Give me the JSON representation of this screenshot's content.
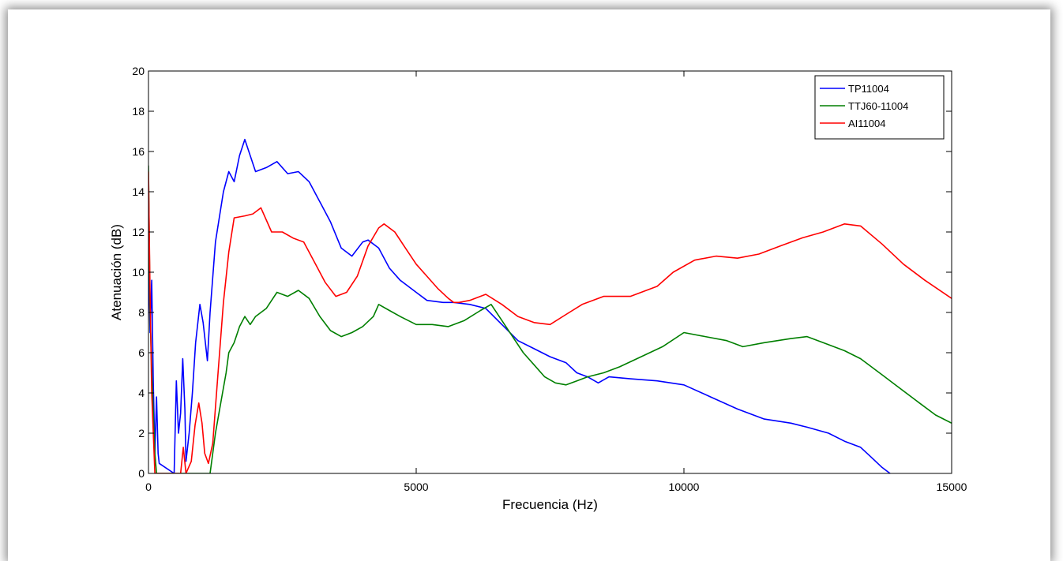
{
  "chart_data": {
    "type": "line",
    "title": "",
    "xlabel": "Frecuencia (Hz)",
    "ylabel": "Atenuación (dB)",
    "xlim": [
      0,
      15000
    ],
    "ylim": [
      0,
      20
    ],
    "xticks": [
      0,
      5000,
      10000,
      15000
    ],
    "yticks": [
      0,
      2,
      4,
      6,
      8,
      10,
      12,
      14,
      16,
      18,
      20
    ],
    "xtick_labels": [
      "0",
      "5000",
      "10000",
      "15000"
    ],
    "ytick_labels": [
      "0",
      "2",
      "4",
      "6",
      "8",
      "10",
      "12",
      "14",
      "16",
      "18",
      "20"
    ],
    "grid": false,
    "legend_position": "top-right",
    "series": [
      {
        "name": "TP11004",
        "color": "#0000ff",
        "points": [
          [
            0,
            11.0
          ],
          [
            30,
            7.0
          ],
          [
            60,
            9.6
          ],
          [
            90,
            4.5
          ],
          [
            120,
            1.0
          ],
          [
            150,
            3.8
          ],
          [
            180,
            1.0
          ],
          [
            200,
            0.5
          ],
          [
            480,
            0.0
          ],
          [
            520,
            4.6
          ],
          [
            560,
            2.0
          ],
          [
            600,
            3.0
          ],
          [
            640,
            5.7
          ],
          [
            680,
            3.2
          ],
          [
            700,
            0.6
          ],
          [
            760,
            2.0
          ],
          [
            820,
            4.0
          ],
          [
            880,
            6.5
          ],
          [
            960,
            8.4
          ],
          [
            1020,
            7.5
          ],
          [
            1100,
            5.6
          ],
          [
            1150,
            8.0
          ],
          [
            1250,
            11.5
          ],
          [
            1400,
            14.0
          ],
          [
            1500,
            15.0
          ],
          [
            1600,
            14.5
          ],
          [
            1700,
            15.8
          ],
          [
            1800,
            16.6
          ],
          [
            1900,
            15.8
          ],
          [
            2000,
            15.0
          ],
          [
            2200,
            15.2
          ],
          [
            2400,
            15.5
          ],
          [
            2600,
            14.9
          ],
          [
            2800,
            15.0
          ],
          [
            3000,
            14.5
          ],
          [
            3200,
            13.5
          ],
          [
            3400,
            12.5
          ],
          [
            3600,
            11.2
          ],
          [
            3800,
            10.8
          ],
          [
            4000,
            11.5
          ],
          [
            4100,
            11.6
          ],
          [
            4300,
            11.2
          ],
          [
            4500,
            10.2
          ],
          [
            4700,
            9.6
          ],
          [
            5000,
            9.0
          ],
          [
            5200,
            8.6
          ],
          [
            5500,
            8.5
          ],
          [
            5700,
            8.5
          ],
          [
            6000,
            8.4
          ],
          [
            6300,
            8.2
          ],
          [
            6600,
            7.4
          ],
          [
            6900,
            6.6
          ],
          [
            7200,
            6.2
          ],
          [
            7500,
            5.8
          ],
          [
            7800,
            5.5
          ],
          [
            8000,
            5.0
          ],
          [
            8200,
            4.8
          ],
          [
            8400,
            4.5
          ],
          [
            8600,
            4.8
          ],
          [
            9000,
            4.7
          ],
          [
            9500,
            4.6
          ],
          [
            10000,
            4.4
          ],
          [
            10500,
            3.8
          ],
          [
            11000,
            3.2
          ],
          [
            11500,
            2.7
          ],
          [
            12000,
            2.5
          ],
          [
            12300,
            2.3
          ],
          [
            12700,
            2.0
          ],
          [
            13000,
            1.6
          ],
          [
            13300,
            1.3
          ],
          [
            13500,
            0.8
          ],
          [
            13700,
            0.3
          ],
          [
            13850,
            0.0
          ]
        ]
      },
      {
        "name": "TTJ60-11004",
        "color": "#007f00",
        "points": [
          [
            0,
            15.3
          ],
          [
            30,
            8.0
          ],
          [
            60,
            5.2
          ],
          [
            90,
            3.0
          ],
          [
            120,
            1.0
          ],
          [
            150,
            0.0
          ],
          [
            1150,
            0.0
          ],
          [
            1250,
            2.0
          ],
          [
            1350,
            3.5
          ],
          [
            1450,
            5.0
          ],
          [
            1500,
            6.0
          ],
          [
            1600,
            6.5
          ],
          [
            1700,
            7.3
          ],
          [
            1800,
            7.8
          ],
          [
            1900,
            7.4
          ],
          [
            2000,
            7.8
          ],
          [
            2200,
            8.2
          ],
          [
            2400,
            9.0
          ],
          [
            2600,
            8.8
          ],
          [
            2800,
            9.1
          ],
          [
            3000,
            8.7
          ],
          [
            3200,
            7.8
          ],
          [
            3400,
            7.1
          ],
          [
            3600,
            6.8
          ],
          [
            3800,
            7.0
          ],
          [
            4000,
            7.3
          ],
          [
            4200,
            7.8
          ],
          [
            4300,
            8.4
          ],
          [
            4500,
            8.1
          ],
          [
            4700,
            7.8
          ],
          [
            5000,
            7.4
          ],
          [
            5300,
            7.4
          ],
          [
            5600,
            7.3
          ],
          [
            5900,
            7.6
          ],
          [
            6200,
            8.1
          ],
          [
            6400,
            8.4
          ],
          [
            6600,
            7.6
          ],
          [
            6800,
            6.8
          ],
          [
            7000,
            6.0
          ],
          [
            7200,
            5.4
          ],
          [
            7400,
            4.8
          ],
          [
            7600,
            4.5
          ],
          [
            7800,
            4.4
          ],
          [
            8000,
            4.6
          ],
          [
            8200,
            4.8
          ],
          [
            8500,
            5.0
          ],
          [
            8800,
            5.3
          ],
          [
            9200,
            5.8
          ],
          [
            9600,
            6.3
          ],
          [
            10000,
            7.0
          ],
          [
            10400,
            6.8
          ],
          [
            10800,
            6.6
          ],
          [
            11100,
            6.3
          ],
          [
            11500,
            6.5
          ],
          [
            12000,
            6.7
          ],
          [
            12300,
            6.8
          ],
          [
            12600,
            6.5
          ],
          [
            13000,
            6.1
          ],
          [
            13300,
            5.7
          ],
          [
            13700,
            4.9
          ],
          [
            14000,
            4.3
          ],
          [
            14400,
            3.5
          ],
          [
            14700,
            2.9
          ],
          [
            15000,
            2.5
          ]
        ]
      },
      {
        "name": "AI11004",
        "color": "#ff0000",
        "points": [
          [
            0,
            15.0
          ],
          [
            30,
            9.0
          ],
          [
            60,
            4.0
          ],
          [
            90,
            2.0
          ],
          [
            120,
            0.0
          ],
          [
            600,
            0.0
          ],
          [
            650,
            1.3
          ],
          [
            700,
            0.0
          ],
          [
            800,
            0.6
          ],
          [
            870,
            2.4
          ],
          [
            940,
            3.5
          ],
          [
            1000,
            2.5
          ],
          [
            1050,
            1.0
          ],
          [
            1120,
            0.5
          ],
          [
            1200,
            1.5
          ],
          [
            1300,
            5.0
          ],
          [
            1400,
            8.5
          ],
          [
            1500,
            11.0
          ],
          [
            1600,
            12.7
          ],
          [
            1800,
            12.8
          ],
          [
            1950,
            12.9
          ],
          [
            2100,
            13.2
          ],
          [
            2300,
            12.0
          ],
          [
            2500,
            12.0
          ],
          [
            2700,
            11.7
          ],
          [
            2900,
            11.5
          ],
          [
            3100,
            10.5
          ],
          [
            3300,
            9.5
          ],
          [
            3500,
            8.8
          ],
          [
            3700,
            9.0
          ],
          [
            3900,
            9.8
          ],
          [
            4100,
            11.3
          ],
          [
            4300,
            12.2
          ],
          [
            4400,
            12.4
          ],
          [
            4600,
            12.0
          ],
          [
            4800,
            11.2
          ],
          [
            5000,
            10.4
          ],
          [
            5200,
            9.8
          ],
          [
            5400,
            9.2
          ],
          [
            5600,
            8.7
          ],
          [
            5700,
            8.5
          ],
          [
            5800,
            8.5
          ],
          [
            6000,
            8.6
          ],
          [
            6300,
            8.9
          ],
          [
            6600,
            8.4
          ],
          [
            6900,
            7.8
          ],
          [
            7200,
            7.5
          ],
          [
            7500,
            7.4
          ],
          [
            7800,
            7.9
          ],
          [
            8100,
            8.4
          ],
          [
            8500,
            8.8
          ],
          [
            9000,
            8.8
          ],
          [
            9500,
            9.3
          ],
          [
            9800,
            10.0
          ],
          [
            10200,
            10.6
          ],
          [
            10600,
            10.8
          ],
          [
            11000,
            10.7
          ],
          [
            11400,
            10.9
          ],
          [
            11800,
            11.3
          ],
          [
            12200,
            11.7
          ],
          [
            12600,
            12.0
          ],
          [
            13000,
            12.4
          ],
          [
            13300,
            12.3
          ],
          [
            13700,
            11.4
          ],
          [
            14100,
            10.4
          ],
          [
            14500,
            9.6
          ],
          [
            15000,
            8.7
          ]
        ]
      }
    ]
  }
}
